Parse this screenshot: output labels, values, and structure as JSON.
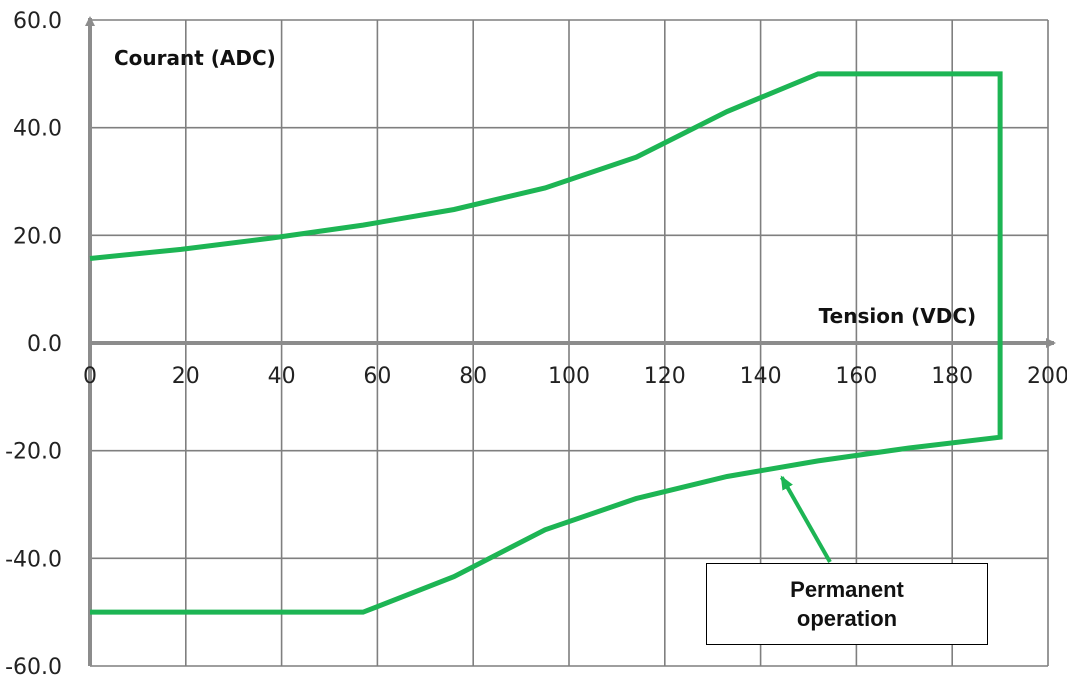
{
  "chart_data": {
    "type": "line",
    "xlabel": "Tension (VDC)",
    "ylabel": "Courant (ADC)",
    "xlim": [
      0,
      200
    ],
    "ylim": [
      -60,
      60
    ],
    "x_ticks": [
      "0",
      "20",
      "40",
      "60",
      "80",
      "100",
      "120",
      "140",
      "160",
      "180",
      "200"
    ],
    "y_ticks": [
      "60.0",
      "40.0",
      "20.0",
      "0.0",
      "-20.0",
      "-40.0",
      "-60.0"
    ],
    "grid": true,
    "line_color": "#1db554",
    "axis_color": "#8c8c8c",
    "series": [
      {
        "points": [
          [
            0,
            15.7
          ],
          [
            19,
            17.4
          ],
          [
            38,
            19.5
          ],
          [
            57,
            21.9
          ],
          [
            76,
            24.8
          ],
          [
            95,
            28.8
          ],
          [
            114,
            34.5
          ],
          [
            133,
            43.0
          ],
          [
            152,
            50.0
          ],
          [
            190,
            50.0
          ],
          [
            190,
            -17.5
          ],
          [
            171,
            -19.5
          ],
          [
            152,
            -21.9
          ],
          [
            133,
            -24.8
          ],
          [
            114,
            -28.9
          ],
          [
            95,
            -34.7
          ],
          [
            76,
            -43.4
          ],
          [
            57,
            -50.0
          ],
          [
            0,
            -50.0
          ]
        ]
      }
    ],
    "annotation": {
      "text_line1": "Permanent",
      "text_line2": "operation",
      "arrow_points_to": [
        144,
        -24.2
      ]
    }
  }
}
